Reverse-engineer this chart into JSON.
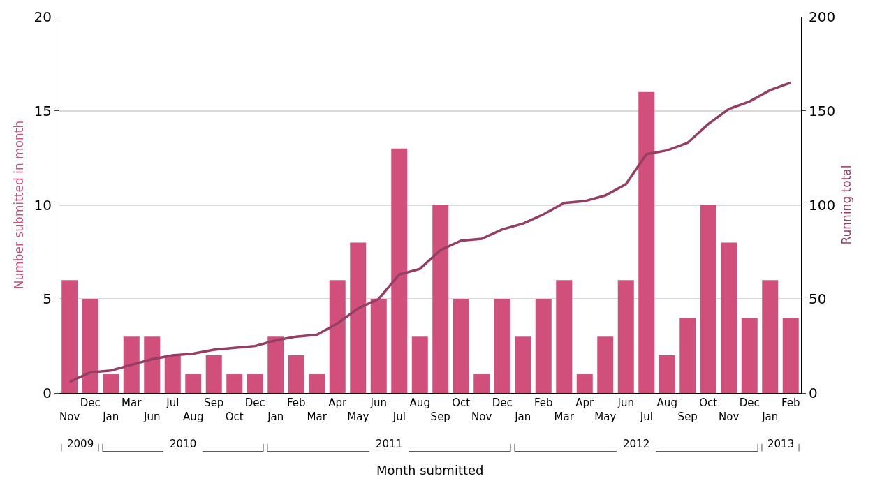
{
  "chart_data": {
    "type": "bar",
    "categories": [
      "Nov",
      "Dec",
      "Jan",
      "Mar",
      "Jun",
      "Jul",
      "Aug",
      "Sep",
      "Oct",
      "Dec",
      "Jan",
      "Feb",
      "Mar",
      "Apr",
      "May",
      "Jun",
      "Jul",
      "Aug",
      "Sep",
      "Oct",
      "Nov",
      "Dec",
      "Jan",
      "Feb",
      "Mar",
      "Apr",
      "May",
      "Jun",
      "Jul",
      "Aug",
      "Sep",
      "Oct",
      "Nov",
      "Dec",
      "Jan",
      "Feb"
    ],
    "series": [
      {
        "color": "#d04f7b",
        "values": [
          6,
          5,
          1,
          3,
          3,
          2,
          1,
          2,
          1,
          1,
          3,
          2,
          1,
          6,
          8,
          5,
          13,
          3,
          10,
          5,
          1,
          5,
          3,
          5,
          6,
          1,
          3,
          6,
          16,
          2,
          4,
          10,
          8,
          4,
          6,
          4
        ]
      },
      {
        "type": "line",
        "axis": "y2",
        "color": "#953d62",
        "values": [
          6,
          11,
          12,
          15,
          18,
          20,
          21,
          23,
          24,
          25,
          28,
          30,
          31,
          37,
          45,
          50,
          63,
          66,
          76,
          81,
          82,
          87,
          90,
          95,
          101,
          102,
          105,
          111,
          127,
          129,
          133,
          143,
          151,
          155,
          161,
          165
        ]
      }
    ],
    "xlabel": "Month submitted",
    "ylabel": "Number submitted in month",
    "y2label": "Running total",
    "ylim": [
      0,
      20
    ],
    "yticks": [
      0,
      5,
      10,
      15,
      20
    ],
    "y2lim": [
      0,
      200
    ],
    "y2ticks": [
      0,
      50,
      100,
      150,
      200
    ],
    "annotations": [
      "2009",
      "2010",
      "2011",
      "2012",
      "2013"
    ],
    "grid": "y"
  }
}
